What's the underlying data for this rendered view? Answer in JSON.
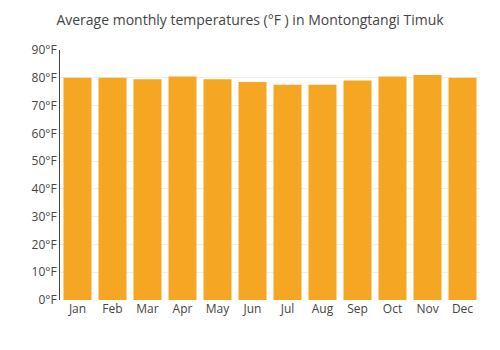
{
  "chart_data": {
    "type": "bar",
    "title": "Average monthly temperatures (°F ) in Montongtangi Timuk",
    "categories": [
      "Jan",
      "Feb",
      "Mar",
      "Apr",
      "May",
      "Jun",
      "Jul",
      "Aug",
      "Sep",
      "Oct",
      "Nov",
      "Dec"
    ],
    "values": [
      80.0,
      80.0,
      79.5,
      80.5,
      79.5,
      78.5,
      77.5,
      77.5,
      79.0,
      80.5,
      81.0,
      80.0
    ],
    "color": "#F5A623",
    "ylim": [
      0,
      90
    ],
    "yticks": [
      {
        "value": 0,
        "label": "0°F"
      },
      {
        "value": 10,
        "label": "10°F"
      },
      {
        "value": 20,
        "label": "20°F"
      },
      {
        "value": 30,
        "label": "30°F"
      },
      {
        "value": 40,
        "label": "40°F"
      },
      {
        "value": 50,
        "label": "50°F"
      },
      {
        "value": 60,
        "label": "60°F"
      },
      {
        "value": 70,
        "label": "70°F"
      },
      {
        "value": 80,
        "label": "80°F"
      },
      {
        "value": 90,
        "label": "90°F"
      }
    ],
    "grid": true
  }
}
